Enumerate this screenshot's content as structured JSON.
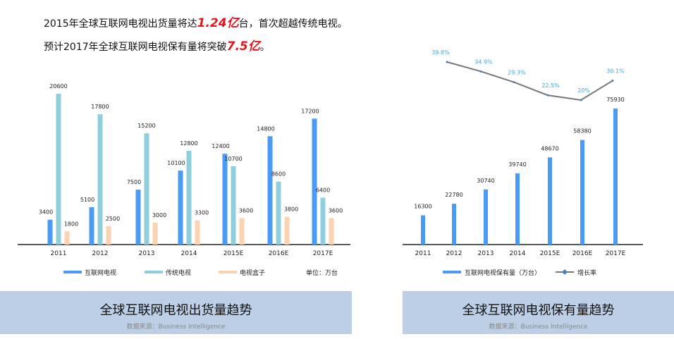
{
  "headline": {
    "line1_pre": "2015年全球互联网电视出货量将达",
    "line1_hl": "1.24亿",
    "line1_post": "台，首次超越传统电视。",
    "line2_pre": "预计2017年全球互联网电视保有量将突破",
    "line2_hl": "7.5亿",
    "line2_post": "。"
  },
  "colors": {
    "internet": "#4a9bf5",
    "traditional": "#8fcfdc",
    "box": "#fbd3b0",
    "line": "#777777",
    "line_label": "#3da6d6"
  },
  "chart_data": [
    {
      "type": "bar",
      "title": "全球互联网电视出货量趋势",
      "source": "数据来源：Business Intelligence",
      "unit": "单位：万台",
      "categories": [
        "2011",
        "2012",
        "2013",
        "2014",
        "2015E",
        "2016E",
        "2017E"
      ],
      "ylim": [
        0,
        21000
      ],
      "legend": "bottom",
      "series": [
        {
          "name": "互联网电视",
          "values": [
            3400,
            5100,
            7500,
            10100,
            12400,
            14800,
            17200
          ]
        },
        {
          "name": "传统电视",
          "values": [
            20600,
            17800,
            15200,
            12800,
            10700,
            8600,
            6400
          ]
        },
        {
          "name": "电视盒子",
          "values": [
            1800,
            2500,
            3000,
            3300,
            3600,
            3800,
            3600
          ]
        }
      ]
    },
    {
      "type": "bar+line",
      "title": "全球互联网电视保有量趋势",
      "source": "数据来源：Business Intelligence",
      "categories": [
        "2011",
        "2012",
        "2013",
        "2014",
        "2015E",
        "2016E",
        "2017E"
      ],
      "ylim": [
        0,
        80000
      ],
      "legend": "bottom",
      "series": [
        {
          "name": "互联网电视保有量（万台）",
          "values": [
            16300,
            22780,
            30740,
            39740,
            48670,
            58380,
            75930
          ]
        },
        {
          "name": "增长率",
          "values": [
            null,
            39.8,
            34.9,
            29.3,
            22.5,
            20,
            30.1
          ],
          "labels": [
            "",
            "39.8%",
            "34.9%",
            "29.3%",
            "22.5%",
            "20%",
            "30.1%"
          ]
        }
      ]
    }
  ]
}
